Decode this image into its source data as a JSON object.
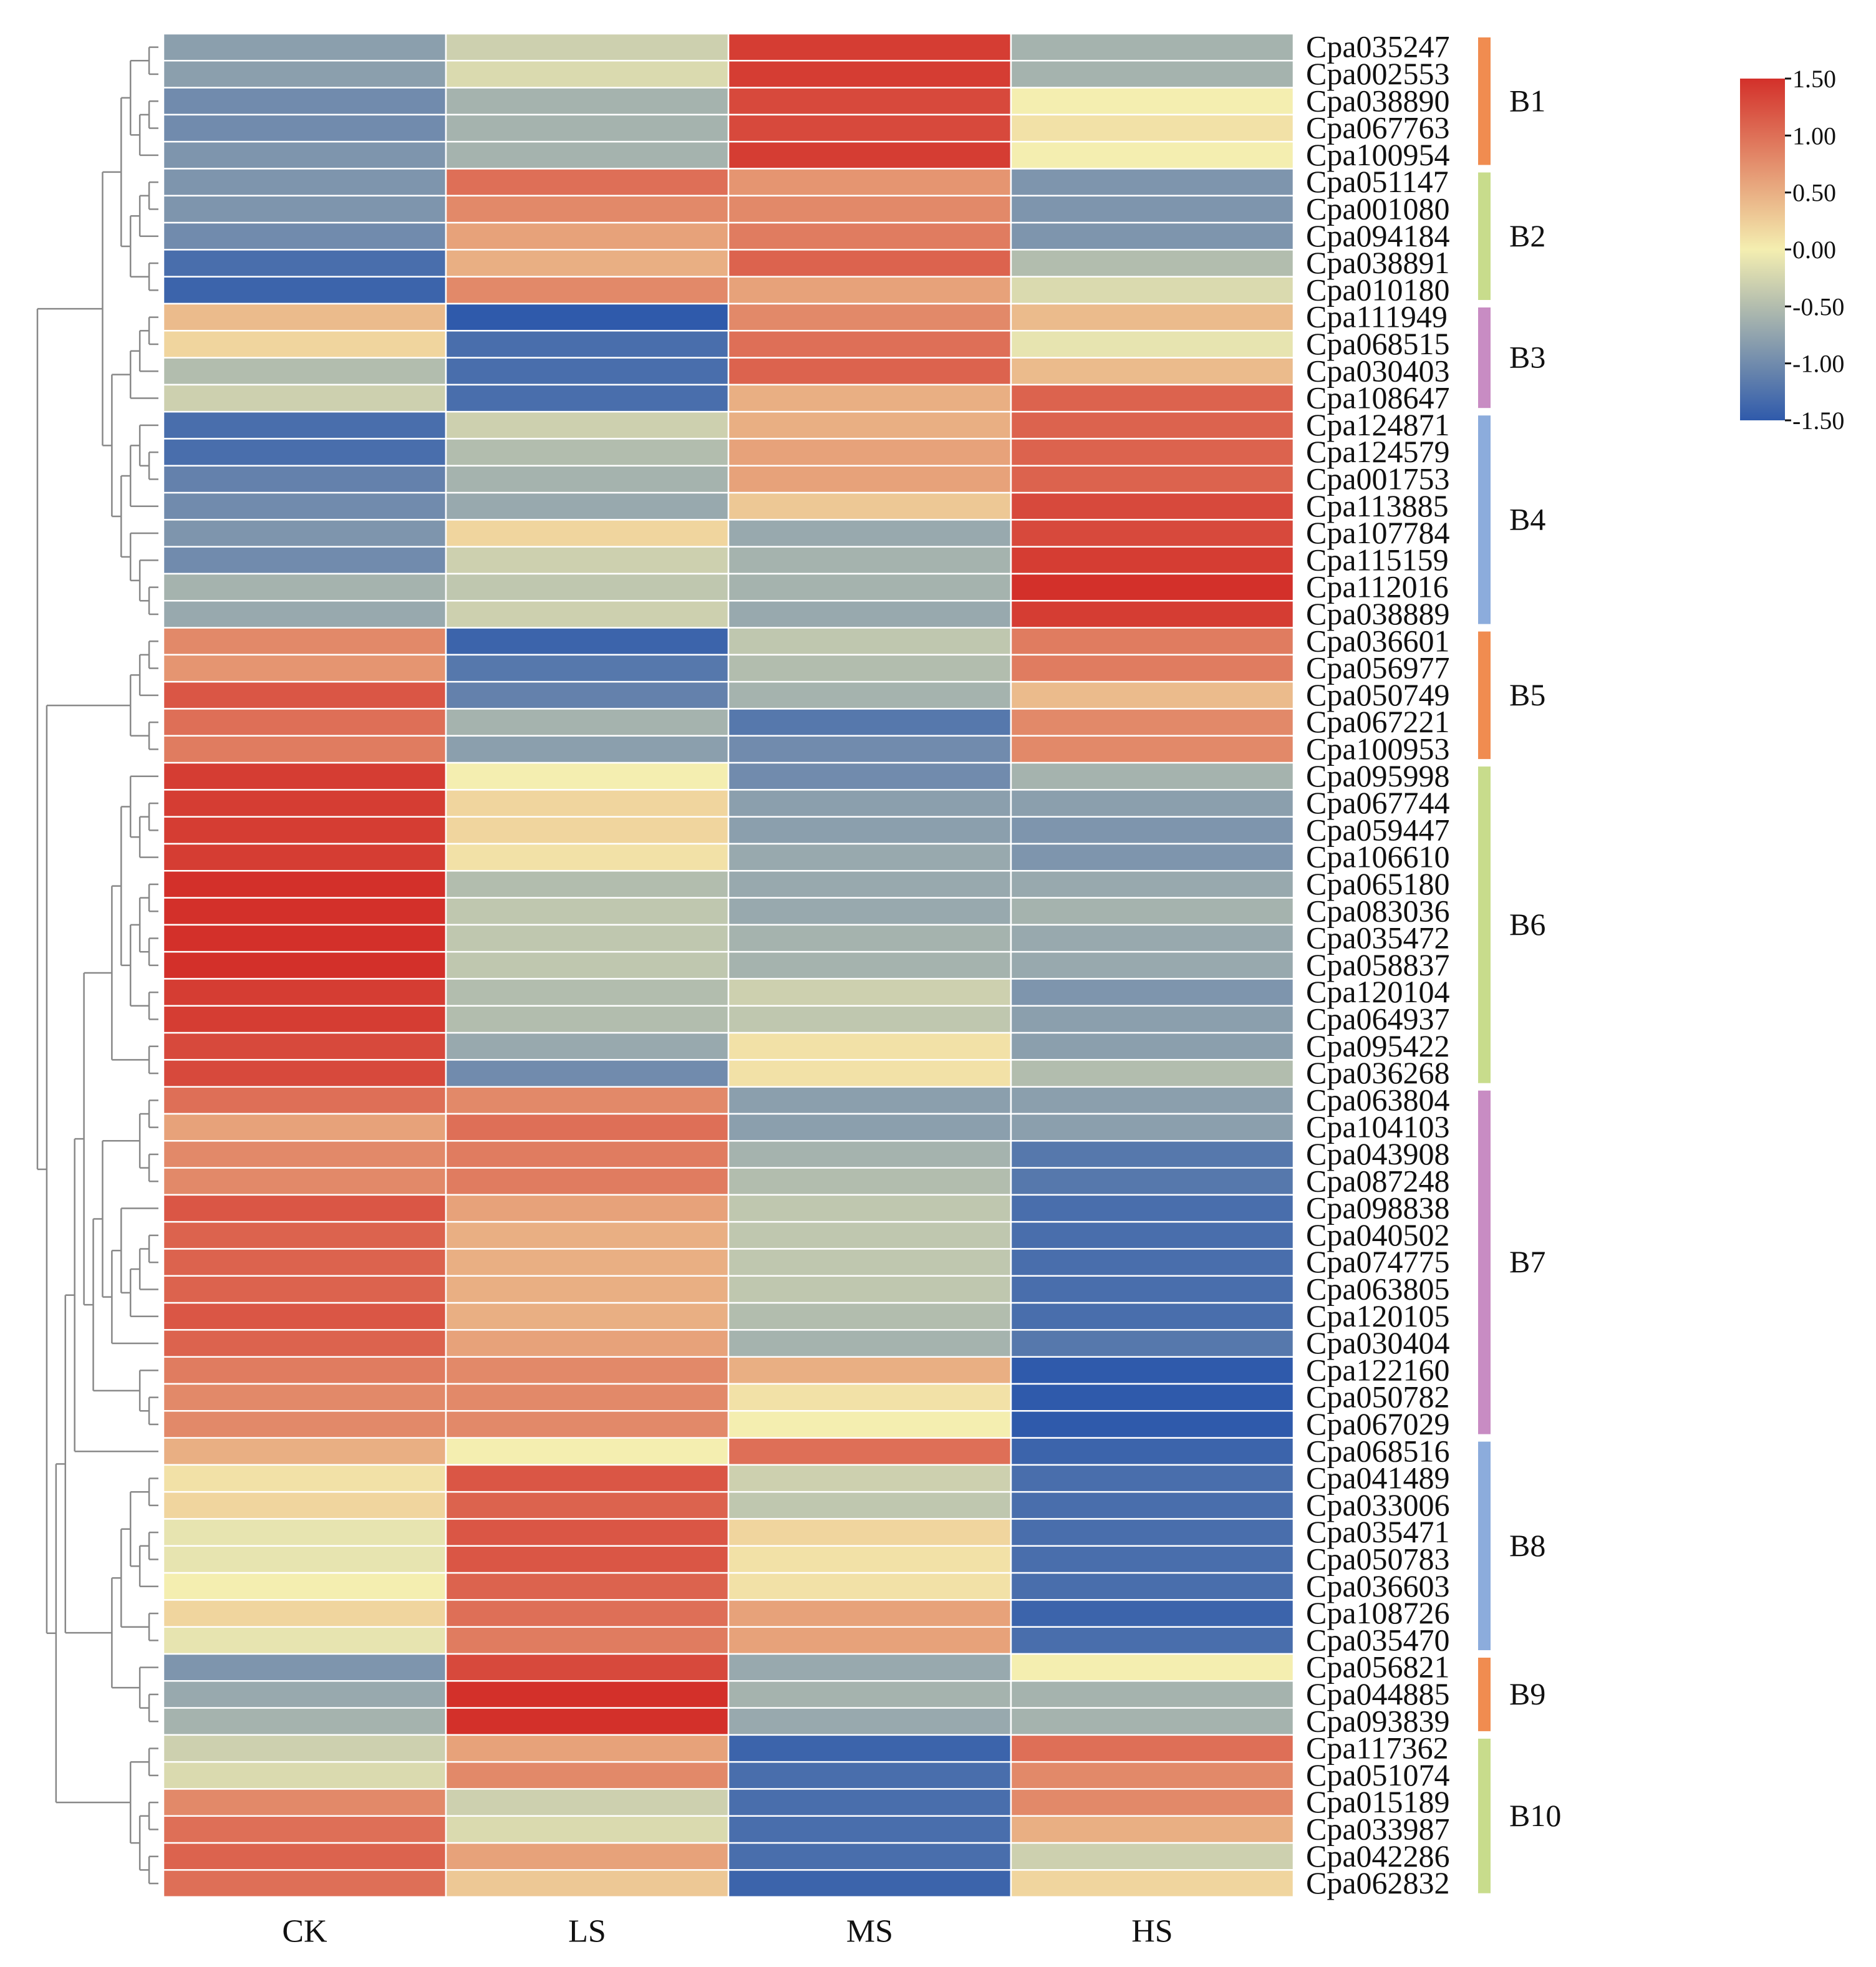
{
  "chart_data": {
    "type": "heatmap",
    "columns": [
      "CK",
      "LS",
      "MS",
      "HS"
    ],
    "rows": [
      "Cpa035247",
      "Cpa002553",
      "Cpa038890",
      "Cpa067763",
      "Cpa100954",
      "Cpa051147",
      "Cpa001080",
      "Cpa094184",
      "Cpa038891",
      "Cpa010180",
      "Cpa111949",
      "Cpa068515",
      "Cpa030403",
      "Cpa108647",
      "Cpa124871",
      "Cpa124579",
      "Cpa001753",
      "Cpa113885",
      "Cpa107784",
      "Cpa115159",
      "Cpa112016",
      "Cpa038889",
      "Cpa036601",
      "Cpa056977",
      "Cpa050749",
      "Cpa067221",
      "Cpa100953",
      "Cpa095998",
      "Cpa067744",
      "Cpa059447",
      "Cpa106610",
      "Cpa065180",
      "Cpa083036",
      "Cpa035472",
      "Cpa058837",
      "Cpa120104",
      "Cpa064937",
      "Cpa095422",
      "Cpa036268",
      "Cpa063804",
      "Cpa104103",
      "Cpa043908",
      "Cpa087248",
      "Cpa098838",
      "Cpa040502",
      "Cpa074775",
      "Cpa063805",
      "Cpa120105",
      "Cpa030404",
      "Cpa122160",
      "Cpa050782",
      "Cpa067029",
      "Cpa068516",
      "Cpa041489",
      "Cpa033006",
      "Cpa035471",
      "Cpa050783",
      "Cpa036603",
      "Cpa108726",
      "Cpa035470",
      "Cpa056821",
      "Cpa044885",
      "Cpa093839",
      "Cpa117362",
      "Cpa051074",
      "Cpa015189",
      "Cpa033987",
      "Cpa042286",
      "Cpa062832"
    ],
    "values": [
      [
        -0.8,
        -0.3,
        1.4,
        -0.6
      ],
      [
        -0.8,
        -0.2,
        1.4,
        -0.6
      ],
      [
        -1.0,
        -0.6,
        1.3,
        0.0
      ],
      [
        -1.0,
        -0.6,
        1.3,
        0.1
      ],
      [
        -0.9,
        -0.6,
        1.4,
        0.0
      ],
      [
        -0.9,
        1.0,
        0.7,
        -0.9
      ],
      [
        -0.9,
        0.8,
        0.8,
        -0.9
      ],
      [
        -1.0,
        0.6,
        0.9,
        -0.9
      ],
      [
        -1.3,
        0.5,
        1.1,
        -0.5
      ],
      [
        -1.4,
        0.8,
        0.6,
        -0.2
      ],
      [
        0.4,
        -1.5,
        0.8,
        0.4
      ],
      [
        0.2,
        -1.3,
        1.0,
        -0.1
      ],
      [
        -0.5,
        -1.3,
        1.1,
        0.4
      ],
      [
        -0.3,
        -1.3,
        0.5,
        1.1
      ],
      [
        -1.3,
        -0.3,
        0.5,
        1.1
      ],
      [
        -1.3,
        -0.5,
        0.6,
        1.1
      ],
      [
        -1.1,
        -0.6,
        0.6,
        1.1
      ],
      [
        -1.0,
        -0.7,
        0.3,
        1.3
      ],
      [
        -0.9,
        0.2,
        -0.7,
        1.3
      ],
      [
        -1.0,
        -0.3,
        -0.6,
        1.4
      ],
      [
        -0.6,
        -0.4,
        -0.6,
        1.5
      ],
      [
        -0.7,
        -0.3,
        -0.7,
        1.4
      ],
      [
        0.8,
        -1.4,
        -0.4,
        0.9
      ],
      [
        0.7,
        -1.2,
        -0.5,
        0.9
      ],
      [
        1.2,
        -1.1,
        -0.6,
        0.4
      ],
      [
        1.0,
        -0.6,
        -1.2,
        0.8
      ],
      [
        0.9,
        -0.8,
        -1.0,
        0.8
      ],
      [
        1.4,
        0.0,
        -1.0,
        -0.6
      ],
      [
        1.4,
        0.2,
        -0.8,
        -0.8
      ],
      [
        1.4,
        0.2,
        -0.8,
        -0.9
      ],
      [
        1.4,
        0.1,
        -0.7,
        -0.9
      ],
      [
        1.5,
        -0.5,
        -0.7,
        -0.7
      ],
      [
        1.5,
        -0.4,
        -0.7,
        -0.6
      ],
      [
        1.5,
        -0.4,
        -0.6,
        -0.7
      ],
      [
        1.5,
        -0.4,
        -0.6,
        -0.7
      ],
      [
        1.4,
        -0.5,
        -0.3,
        -0.9
      ],
      [
        1.4,
        -0.5,
        -0.4,
        -0.8
      ],
      [
        1.3,
        -0.7,
        0.1,
        -0.8
      ],
      [
        1.3,
        -1.0,
        0.1,
        -0.5
      ],
      [
        1.0,
        0.8,
        -0.8,
        -0.8
      ],
      [
        0.6,
        1.0,
        -0.8,
        -0.8
      ],
      [
        0.8,
        0.9,
        -0.6,
        -1.2
      ],
      [
        0.8,
        0.9,
        -0.5,
        -1.2
      ],
      [
        1.2,
        0.6,
        -0.4,
        -1.3
      ],
      [
        1.1,
        0.5,
        -0.4,
        -1.3
      ],
      [
        1.1,
        0.5,
        -0.4,
        -1.3
      ],
      [
        1.1,
        0.5,
        -0.4,
        -1.3
      ],
      [
        1.2,
        0.5,
        -0.5,
        -1.3
      ],
      [
        1.1,
        0.6,
        -0.6,
        -1.2
      ],
      [
        0.9,
        0.8,
        0.5,
        -1.5
      ],
      [
        0.8,
        0.8,
        0.1,
        -1.5
      ],
      [
        0.8,
        0.8,
        0.0,
        -1.5
      ],
      [
        0.5,
        0.0,
        1.0,
        -1.4
      ],
      [
        0.1,
        1.2,
        -0.3,
        -1.3
      ],
      [
        0.2,
        1.1,
        -0.4,
        -1.3
      ],
      [
        -0.1,
        1.2,
        0.2,
        -1.3
      ],
      [
        -0.1,
        1.2,
        0.1,
        -1.3
      ],
      [
        0.0,
        1.1,
        0.1,
        -1.3
      ],
      [
        0.2,
        1.0,
        0.6,
        -1.4
      ],
      [
        -0.1,
        0.9,
        0.6,
        -1.3
      ],
      [
        -0.9,
        1.3,
        -0.7,
        0.0
      ],
      [
        -0.7,
        1.5,
        -0.6,
        -0.6
      ],
      [
        -0.6,
        1.5,
        -0.7,
        -0.6
      ],
      [
        -0.3,
        0.6,
        -1.4,
        1.0
      ],
      [
        -0.2,
        0.8,
        -1.3,
        0.8
      ],
      [
        0.8,
        -0.3,
        -1.3,
        0.8
      ],
      [
        1.0,
        -0.2,
        -1.3,
        0.5
      ],
      [
        1.1,
        0.6,
        -1.3,
        -0.3
      ],
      [
        1.0,
        0.3,
        -1.4,
        0.2
      ]
    ],
    "groups": [
      {
        "name": "B1",
        "start": 0,
        "end": 4,
        "color": "#f08c50"
      },
      {
        "name": "B2",
        "start": 5,
        "end": 9,
        "color": "#c8dc8c"
      },
      {
        "name": "B3",
        "start": 10,
        "end": 13,
        "color": "#c88cc3"
      },
      {
        "name": "B4",
        "start": 14,
        "end": 21,
        "color": "#8cacdc"
      },
      {
        "name": "B5",
        "start": 22,
        "end": 26,
        "color": "#f08c50"
      },
      {
        "name": "B6",
        "start": 27,
        "end": 38,
        "color": "#c8dc8c"
      },
      {
        "name": "B7",
        "start": 39,
        "end": 51,
        "color": "#c88cc3"
      },
      {
        "name": "B8",
        "start": 52,
        "end": 59,
        "color": "#8cacdc"
      },
      {
        "name": "B9",
        "start": 60,
        "end": 62,
        "color": "#f08c50"
      },
      {
        "name": "B10",
        "start": 63,
        "end": 68,
        "color": "#c8dc8c"
      }
    ],
    "color_scale": {
      "min": -1.5,
      "max": 1.5,
      "low_color": "#2f5aab",
      "mid_color": "#f4eeb0",
      "high_color": "#d3302a",
      "ticks": [
        "1.50",
        "1.00",
        "0.50",
        "0.00",
        "-0.50",
        "-1.00",
        "-1.50"
      ]
    },
    "dendrogram": "row clustering tree on left side",
    "cell_border_color": "#ffffff",
    "dendrogram_color": "#888888"
  }
}
